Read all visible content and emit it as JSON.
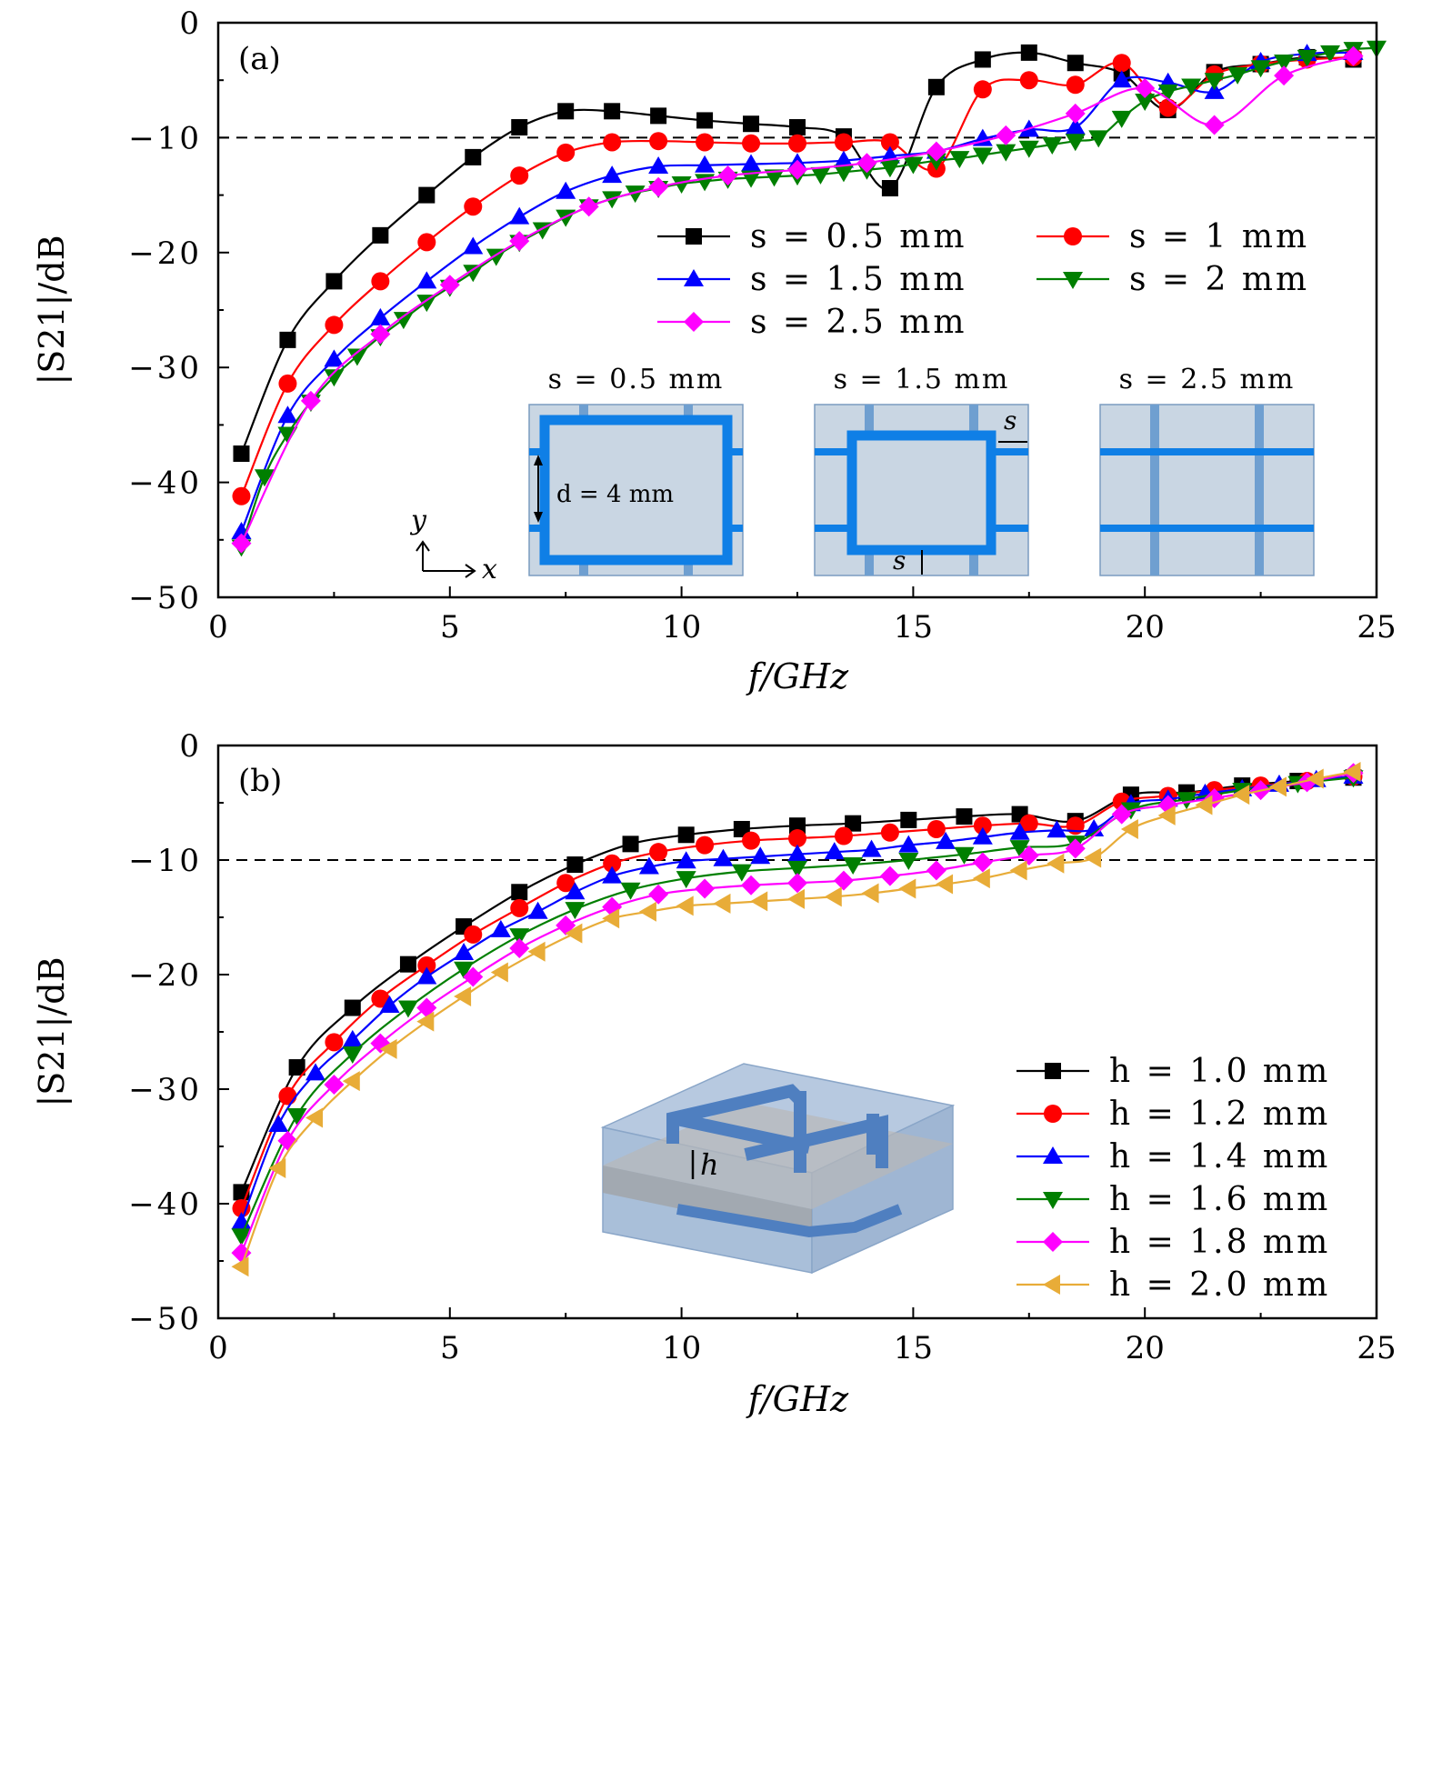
{
  "colors": {
    "black": "#000000",
    "red": "#ff0000",
    "blue": "#0000ff",
    "green": "#007f00",
    "magenta": "#ff00ff",
    "orange": "#e8ac38",
    "cell": "#c9d6e3",
    "bar": "#0f7fe6",
    "bar_dim": "#6f9fd0"
  },
  "chart_data": [
    {
      "type": "line",
      "panel_label": "(a)",
      "xlabel": "f/GHz",
      "ylabel": "|S21|/dB",
      "xlim": [
        0,
        25
      ],
      "ylim": [
        -50,
        0
      ],
      "xticks": [
        "0",
        "5",
        "10",
        "15",
        "20",
        "25"
      ],
      "yticks": [
        "0",
        "−10",
        "−20",
        "−30",
        "−40",
        "−50"
      ],
      "reference_line": -10,
      "legend_position": "upper-right",
      "series": [
        {
          "name": "s = 0.5 mm",
          "color": "#000000",
          "marker": "square",
          "x": [
            0.5,
            1.5,
            2.5,
            3.5,
            4.5,
            5.5,
            6.5,
            7.5,
            8.5,
            9.5,
            10.5,
            11.5,
            12.5,
            13.5,
            14.5,
            15.5,
            16.5,
            17.5,
            18.5,
            19.5,
            20.5,
            21.5,
            22.5,
            23.5,
            24.5
          ],
          "y": [
            -37.5,
            -27.6,
            -22.5,
            -18.5,
            -15,
            -11.7,
            -9.1,
            -7.7,
            -7.7,
            -8.1,
            -8.5,
            -8.8,
            -9.1,
            -9.9,
            -14.4,
            -5.6,
            -3.2,
            -2.6,
            -3.5,
            -4.4,
            -7.6,
            -4.3,
            -3.6,
            -3.0,
            -3.2
          ]
        },
        {
          "name": "s = 1 mm",
          "color": "#ff0000",
          "marker": "circle",
          "x": [
            0.5,
            1.5,
            2.5,
            3.5,
            4.5,
            5.5,
            6.5,
            7.5,
            8.5,
            9.5,
            10.5,
            11.5,
            12.5,
            13.5,
            14.5,
            15.5,
            16.5,
            17.5,
            18.5,
            19.5,
            20.5,
            21.5,
            22.5,
            23.5,
            24.5
          ],
          "y": [
            -41.2,
            -31.4,
            -26.3,
            -22.5,
            -19.1,
            -16.0,
            -13.3,
            -11.3,
            -10.4,
            -10.3,
            -10.4,
            -10.5,
            -10.5,
            -10.4,
            -10.4,
            -12.7,
            -5.8,
            -5.0,
            -5.4,
            -3.5,
            -7.4,
            -4.5,
            -3.6,
            -3.2,
            -3.0
          ]
        },
        {
          "name": "s = 1.5 mm",
          "color": "#0000ff",
          "marker": "triangle-up",
          "x": [
            0.5,
            1.5,
            2.5,
            3.5,
            4.5,
            5.5,
            6.5,
            7.5,
            8.5,
            9.5,
            10.5,
            11.5,
            12.5,
            13.5,
            14.5,
            15.5,
            16.5,
            17.5,
            18.5,
            19.5,
            20.5,
            21.5,
            22.5,
            23.5,
            24.5
          ],
          "y": [
            -44.3,
            -34.2,
            -29.3,
            -25.7,
            -22.5,
            -19.5,
            -16.9,
            -14.7,
            -13.3,
            -12.5,
            -12.4,
            -12.3,
            -12.2,
            -12.0,
            -11.6,
            -11.2,
            -10.1,
            -9.3,
            -9.1,
            -5.0,
            -5.2,
            -6.0,
            -3.4,
            -2.7,
            -2.6
          ]
        },
        {
          "name": "s = 2 mm",
          "color": "#007f00",
          "marker": "triangle-down",
          "x": [
            0.5,
            1,
            1.5,
            2,
            2.5,
            3,
            3.5,
            4,
            4.5,
            5,
            5.5,
            6,
            6.5,
            7,
            7.5,
            8,
            8.5,
            9,
            9.5,
            10,
            10.5,
            11,
            11.5,
            12,
            12.5,
            13,
            13.5,
            14,
            14.5,
            15,
            15.5,
            16,
            16.5,
            17,
            17.5,
            18,
            18.5,
            19,
            19.5,
            20,
            20.5,
            21,
            21.5,
            22,
            22.5,
            23,
            23.5,
            24,
            24.5,
            25
          ],
          "y": [
            -45.6,
            -39.5,
            -35.8,
            -33,
            -30.8,
            -29,
            -27.3,
            -25.8,
            -24.3,
            -23,
            -21.7,
            -20.3,
            -19.1,
            -18,
            -16.9,
            -16,
            -15.3,
            -14.8,
            -14.4,
            -14,
            -13.8,
            -13.6,
            -13.5,
            -13.4,
            -13.3,
            -13.2,
            -13,
            -12.8,
            -12.6,
            -12.3,
            -12,
            -11.8,
            -11.5,
            -11.2,
            -10.9,
            -10.6,
            -10.3,
            -10,
            -8.3,
            -6.8,
            -6.0,
            -5.5,
            -5.0,
            -4.5,
            -3.9,
            -3.4,
            -3.0,
            -2.6,
            -2.3,
            -2.2
          ]
        },
        {
          "name": "s = 2.5 mm",
          "color": "#ff00ff",
          "marker": "diamond",
          "x": [
            0.5,
            2,
            3.5,
            5,
            6.5,
            8,
            9.5,
            11,
            12.5,
            14,
            15.5,
            17,
            18.5,
            20,
            21.5,
            23,
            24.5
          ],
          "y": [
            -45.3,
            -32.9,
            -27.1,
            -22.8,
            -19,
            -16,
            -14.3,
            -13.3,
            -12.8,
            -12.2,
            -11.2,
            -9.8,
            -7.9,
            -5.7,
            -8.9,
            -4.6,
            -2.9
          ]
        }
      ],
      "inset": {
        "labels": [
          "s = 0.5 mm",
          "s = 1.5 mm",
          "s = 2.5 mm"
        ],
        "dimension_label": "d = 4 mm",
        "spacing_symbol": "s",
        "axis_x": "x",
        "axis_y": "y"
      }
    },
    {
      "type": "line",
      "panel_label": "(b)",
      "xlabel": "f/GHz",
      "ylabel": "|S21|/dB",
      "xlim": [
        0,
        25
      ],
      "ylim": [
        -50,
        0
      ],
      "xticks": [
        "0",
        "5",
        "10",
        "15",
        "20",
        "25"
      ],
      "yticks": [
        "0",
        "−10",
        "−20",
        "−30",
        "−40",
        "−50"
      ],
      "reference_line": -10,
      "legend_position": "lower-right",
      "series": [
        {
          "name": "h = 1.0 mm",
          "color": "#000000",
          "marker": "square",
          "x": [
            0.5,
            1.7,
            2.9,
            4.1,
            5.3,
            6.5,
            7.7,
            8.9,
            10.1,
            11.3,
            12.5,
            13.7,
            14.9,
            16.1,
            17.3,
            18.5,
            19.7,
            20.9,
            22.1,
            23.3,
            24.5
          ],
          "y": [
            -39,
            -28.1,
            -22.9,
            -19.1,
            -15.8,
            -12.8,
            -10.4,
            -8.6,
            -7.8,
            -7.3,
            -7.0,
            -6.8,
            -6.5,
            -6.2,
            -6.0,
            -6.6,
            -4.3,
            -4.1,
            -3.5,
            -3.1,
            -2.8
          ]
        },
        {
          "name": "h = 1.2 mm",
          "color": "#ff0000",
          "marker": "circle",
          "x": [
            0.5,
            1.5,
            2.5,
            3.5,
            4.5,
            5.5,
            6.5,
            7.5,
            8.5,
            9.5,
            10.5,
            11.5,
            12.5,
            13.5,
            14.5,
            15.5,
            16.5,
            17.5,
            18.5,
            19.5,
            20.5,
            21.5,
            22.5,
            23.5,
            24.5
          ],
          "y": [
            -40.4,
            -30.6,
            -25.9,
            -22.1,
            -19.2,
            -16.5,
            -14.2,
            -12,
            -10.3,
            -9.3,
            -8.7,
            -8.3,
            -8.1,
            -7.9,
            -7.6,
            -7.3,
            -7.0,
            -6.8,
            -7.0,
            -4.9,
            -4.4,
            -3.9,
            -3.5,
            -3.1,
            -2.7
          ]
        },
        {
          "name": "h = 1.4 mm",
          "color": "#0000ff",
          "marker": "triangle-up",
          "x": [
            0.5,
            1.3,
            2.1,
            2.9,
            3.7,
            4.5,
            5.3,
            6.1,
            6.9,
            7.7,
            8.5,
            9.3,
            10.1,
            10.9,
            11.7,
            12.5,
            13.3,
            14.1,
            14.9,
            15.7,
            16.5,
            17.3,
            18.1,
            18.9,
            19.7,
            20.5,
            21.3,
            22.1,
            22.9,
            23.7,
            24.5
          ],
          "y": [
            -41.6,
            -33.1,
            -28.6,
            -25.7,
            -22.7,
            -20.2,
            -18.1,
            -16.1,
            -14.5,
            -12.8,
            -11.4,
            -10.6,
            -10.1,
            -9.9,
            -9.7,
            -9.5,
            -9.3,
            -9.1,
            -8.7,
            -8.4,
            -8.0,
            -7.6,
            -7.4,
            -7.3,
            -5.1,
            -4.7,
            -4.2,
            -3.8,
            -3.4,
            -3.0,
            -2.7
          ]
        },
        {
          "name": "h = 1.6 mm",
          "color": "#007f00",
          "marker": "triangle-down",
          "x": [
            0.5,
            1.7,
            2.9,
            4.1,
            5.3,
            6.5,
            7.7,
            8.9,
            10.1,
            11.3,
            12.5,
            13.7,
            14.9,
            16.1,
            17.3,
            18.5,
            19.7,
            20.9,
            22.1,
            23.3,
            24.5
          ],
          "y": [
            -42.8,
            -32.3,
            -26.9,
            -22.9,
            -19.5,
            -16.6,
            -14.3,
            -12.6,
            -11.6,
            -11.0,
            -10.7,
            -10.4,
            -10.0,
            -9.5,
            -8.9,
            -8.5,
            -5.6,
            -4.7,
            -3.9,
            -3.3,
            -2.8
          ]
        },
        {
          "name": "h = 1.8 mm",
          "color": "#ff00ff",
          "marker": "diamond",
          "x": [
            0.5,
            1.5,
            2.5,
            3.5,
            4.5,
            5.5,
            6.5,
            7.5,
            8.5,
            9.5,
            10.5,
            11.5,
            12.5,
            13.5,
            14.5,
            15.5,
            16.5,
            17.5,
            18.5,
            19.5,
            20.5,
            21.5,
            22.5,
            23.5,
            24.5
          ],
          "y": [
            -44.3,
            -34.5,
            -29.6,
            -26,
            -22.9,
            -20.2,
            -17.7,
            -15.7,
            -14.1,
            -13.0,
            -12.5,
            -12.2,
            -12.0,
            -11.8,
            -11.4,
            -10.9,
            -10.2,
            -9.6,
            -9.0,
            -6.0,
            -5.2,
            -4.6,
            -3.9,
            -3.2,
            -2.4
          ]
        },
        {
          "name": "h = 2.0 mm",
          "color": "#e8ac38",
          "marker": "triangle-left",
          "x": [
            0.5,
            1.3,
            2.1,
            2.9,
            3.7,
            4.5,
            5.3,
            6.1,
            6.9,
            7.7,
            8.5,
            9.3,
            10.1,
            10.9,
            11.7,
            12.5,
            13.3,
            14.1,
            14.9,
            15.7,
            16.5,
            17.3,
            18.1,
            18.9,
            19.7,
            20.5,
            21.3,
            22.1,
            22.9,
            23.7,
            24.5
          ],
          "y": [
            -45.5,
            -36.9,
            -32.5,
            -29.3,
            -26.5,
            -24.1,
            -21.9,
            -19.8,
            -18.0,
            -16.4,
            -15.1,
            -14.5,
            -14.0,
            -13.8,
            -13.6,
            -13.4,
            -13.2,
            -12.9,
            -12.5,
            -12.1,
            -11.6,
            -10.9,
            -10.3,
            -9.8,
            -7.3,
            -6.1,
            -5.2,
            -4.3,
            -3.6,
            -2.9,
            -2.3
          ]
        }
      ],
      "inset": {
        "height_symbol": "h"
      }
    }
  ]
}
